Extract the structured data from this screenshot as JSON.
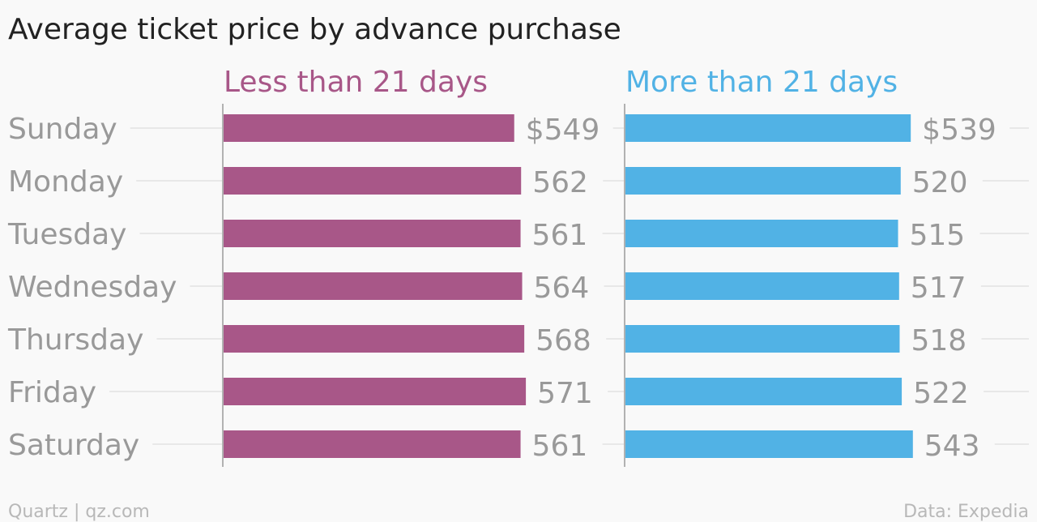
{
  "chart_data": {
    "type": "bar",
    "title": "Average ticket price by advance purchase",
    "categories": [
      "Sunday",
      "Monday",
      "Tuesday",
      "Wednesday",
      "Thursday",
      "Friday",
      "Saturday"
    ],
    "series": [
      {
        "name": "Less than 21 days",
        "color": "#a85788",
        "values": [
          549,
          562,
          561,
          564,
          568,
          571,
          561
        ],
        "value_labels": [
          "$549",
          "562",
          "561",
          "564",
          "568",
          "571",
          "561"
        ]
      },
      {
        "name": "More than 21 days",
        "color": "#51b2e5",
        "values": [
          539,
          520,
          515,
          517,
          518,
          522,
          543
        ],
        "value_labels": [
          "$539",
          "520",
          "515",
          "517",
          "518",
          "522",
          "543"
        ]
      }
    ],
    "xlim": [
      0,
      640
    ],
    "grid": true,
    "legend": "top, above each panel"
  },
  "footer": {
    "source_left": "Quartz | qz.com",
    "source_right": "Data: Expedia"
  }
}
